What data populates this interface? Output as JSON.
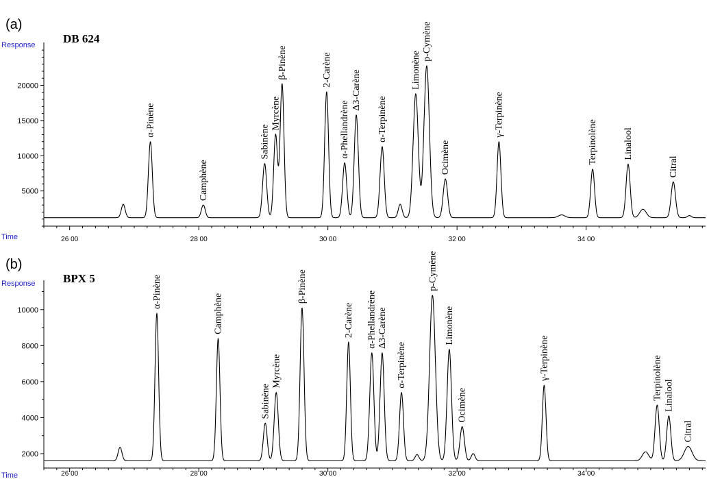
{
  "chart_data": [
    {
      "type": "line",
      "panel_label": "(a)",
      "title": "DB 624",
      "xlabel": "Time",
      "ylabel": "Response",
      "xlim": [
        25.6,
        35.85
      ],
      "ylim": [
        0,
        25500
      ],
      "y_ticks": [
        5000,
        10000,
        15000,
        20000
      ],
      "y_tick_labels": [
        "5000",
        "10000",
        "15000",
        "20000"
      ],
      "x_ticks": [
        26,
        28,
        30,
        32,
        34
      ],
      "x_tick_labels": [
        "26 00",
        "28 00",
        "30 00",
        "32 00",
        "34 00"
      ],
      "baseline": 1200,
      "peaks": [
        {
          "t": 26.83,
          "height": 3100,
          "width": 0.03,
          "name": ""
        },
        {
          "t": 27.25,
          "height": 12000,
          "width": 0.03,
          "name": "α-Pinène"
        },
        {
          "t": 28.07,
          "height": 3000,
          "width": 0.03,
          "name": "Camphène"
        },
        {
          "t": 29.02,
          "height": 8900,
          "width": 0.032,
          "name": "Sabinène"
        },
        {
          "t": 29.19,
          "height": 13000,
          "width": 0.03,
          "name": "Myrcène"
        },
        {
          "t": 29.29,
          "height": 20200,
          "width": 0.03,
          "name": "β-Pinène"
        },
        {
          "t": 29.98,
          "height": 19100,
          "width": 0.03,
          "name": "2-Carène"
        },
        {
          "t": 30.26,
          "height": 9000,
          "width": 0.032,
          "name": "α-Phellandrène"
        },
        {
          "t": 30.44,
          "height": 15800,
          "width": 0.032,
          "name": "Δ3-Carène"
        },
        {
          "t": 30.84,
          "height": 11300,
          "width": 0.032,
          "name": "α-Terpinène"
        },
        {
          "t": 31.12,
          "height": 3100,
          "width": 0.03,
          "name": ""
        },
        {
          "t": 31.36,
          "height": 18800,
          "width": 0.04,
          "name": "Limonène"
        },
        {
          "t": 31.53,
          "height": 22800,
          "width": 0.042,
          "name": "p-Cymène"
        },
        {
          "t": 31.82,
          "height": 6700,
          "width": 0.034,
          "name": "Ocimène"
        },
        {
          "t": 32.65,
          "height": 12000,
          "width": 0.03,
          "name": "γ-Terpinène"
        },
        {
          "t": 33.62,
          "height": 1600,
          "width": 0.05,
          "name": ""
        },
        {
          "t": 34.1,
          "height": 8100,
          "width": 0.03,
          "name": "Terpinolène"
        },
        {
          "t": 34.65,
          "height": 8800,
          "width": 0.032,
          "name": "Linalool"
        },
        {
          "t": 34.88,
          "height": 2400,
          "width": 0.05,
          "name": ""
        },
        {
          "t": 35.35,
          "height": 6300,
          "width": 0.034,
          "name": "Citral"
        },
        {
          "t": 35.6,
          "height": 1500,
          "width": 0.03,
          "name": ""
        }
      ]
    },
    {
      "type": "line",
      "panel_label": "(b)",
      "title": "BPX 5",
      "xlabel": "Time",
      "ylabel": "Response",
      "xlim": [
        25.6,
        35.85
      ],
      "ylim": [
        1200,
        11400
      ],
      "y_ticks": [
        2000,
        4000,
        6000,
        8000,
        10000
      ],
      "y_tick_labels": [
        "2000",
        "4000",
        "6000",
        "8000",
        "10000"
      ],
      "x_ticks": [
        26,
        28,
        30,
        32,
        34
      ],
      "x_tick_labels": [
        "26 00",
        "28 00",
        "30 00",
        "32 00",
        "34 00"
      ],
      "baseline": 1600,
      "peaks": [
        {
          "t": 26.78,
          "height": 2350,
          "width": 0.03,
          "name": ""
        },
        {
          "t": 27.35,
          "height": 9800,
          "width": 0.028,
          "name": "α-Pinène"
        },
        {
          "t": 28.3,
          "height": 8400,
          "width": 0.028,
          "name": "Camphène"
        },
        {
          "t": 29.03,
          "height": 3700,
          "width": 0.03,
          "name": "Sabinène"
        },
        {
          "t": 29.2,
          "height": 5400,
          "width": 0.032,
          "name": "Myrcène"
        },
        {
          "t": 29.6,
          "height": 10100,
          "width": 0.03,
          "name": "β-Pinène"
        },
        {
          "t": 30.32,
          "height": 8200,
          "width": 0.028,
          "name": "2-Carène"
        },
        {
          "t": 30.68,
          "height": 7600,
          "width": 0.032,
          "name": "α-Phellandrène"
        },
        {
          "t": 30.84,
          "height": 7600,
          "width": 0.032,
          "name": "Δ3-Carène"
        },
        {
          "t": 31.14,
          "height": 5400,
          "width": 0.03,
          "name": "α-Terpinène"
        },
        {
          "t": 31.38,
          "height": 1950,
          "width": 0.03,
          "name": ""
        },
        {
          "t": 31.62,
          "height": 10800,
          "width": 0.045,
          "name": "p-Cymène"
        },
        {
          "t": 31.88,
          "height": 7800,
          "width": 0.034,
          "name": "Limonène"
        },
        {
          "t": 32.08,
          "height": 3500,
          "width": 0.034,
          "name": "Ocimène"
        },
        {
          "t": 32.25,
          "height": 2000,
          "width": 0.03,
          "name": ""
        },
        {
          "t": 33.35,
          "height": 5800,
          "width": 0.028,
          "name": "γ-Terpinène"
        },
        {
          "t": 34.92,
          "height": 2100,
          "width": 0.05,
          "name": ""
        },
        {
          "t": 35.1,
          "height": 4700,
          "width": 0.032,
          "name": "Terpinolène"
        },
        {
          "t": 35.28,
          "height": 4100,
          "width": 0.032,
          "name": "Linalool"
        },
        {
          "t": 35.58,
          "height": 2400,
          "width": 0.06,
          "name": "Citral"
        }
      ]
    }
  ]
}
